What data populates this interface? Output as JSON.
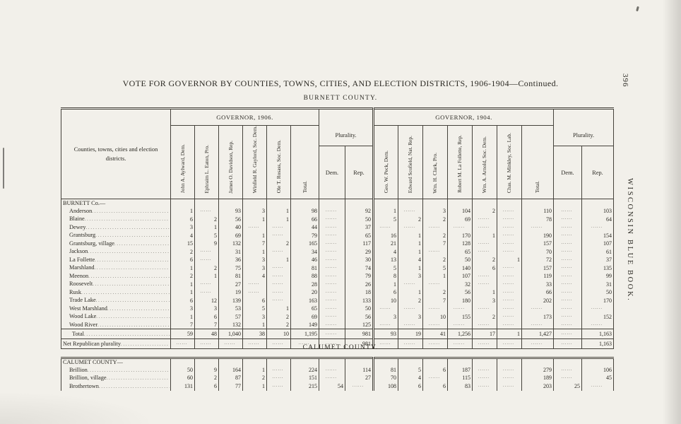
{
  "page": {
    "title": "VOTE FOR GOVERNOR BY COUNTIES, TOWNS, CITIES, AND ELECTION DISTRICTS, 1906-1904—Continued.",
    "page_number": "396",
    "side_text": "WISCONSIN BLUE BOOK.",
    "burnett_heading": "BURNETT COUNTY.",
    "calumet_heading": "CALUMET COUNTY."
  },
  "table": {
    "stub_header": "Counties, towns, cities and election districts.",
    "gov_1906": "GOVERNOR, 1906.",
    "gov_1904": "GOVERNOR, 1904.",
    "plurality": "Plurality.",
    "dem": "Dem.",
    "rep": "Rep.",
    "total_label": "Total.",
    "candidates_1906": [
      "John A. Aylward, Dem.",
      "Ephraim L. Eaton, Pro.",
      "James O. Davidson, Rep.",
      "Winfield R. Gaylord, Soc. Dem.",
      "Ole T. Rosass, Soc. Dem."
    ],
    "candidates_1904": [
      "Geo. W. Peck, Dem.",
      "Edward Scofield, Nat. Rep.",
      "Wm. H. Clark, Pro.",
      "Robert M. La Follette, Rep.",
      "Wm. A. Arnold, Soc. Dem.",
      "Chas. M. Minkley, Soc. Lab."
    ],
    "burnett_rows": [
      {
        "label": "BURNETT Co.—",
        "type": "group",
        "cells": [
          "",
          "",
          "",
          "",
          "",
          "",
          "",
          "",
          "",
          "",
          "",
          "",
          "",
          "",
          "",
          "",
          ""
        ]
      },
      {
        "label": "Anderson",
        "type": "data",
        "cells": [
          "1",
          "",
          "93",
          "3",
          "1",
          "98",
          "",
          "92",
          "1",
          "",
          "3",
          "104",
          "2",
          "",
          "110",
          "",
          "103"
        ]
      },
      {
        "label": "Blaine",
        "type": "data",
        "cells": [
          "6",
          "2",
          "56",
          "1",
          "1",
          "66",
          "",
          "50",
          "5",
          "2",
          "2",
          "69",
          "",
          "",
          "78",
          "",
          "64"
        ]
      },
      {
        "label": "Dewey",
        "type": "data",
        "cells": [
          "3",
          "1",
          "40",
          "",
          "",
          "44",
          "",
          "37",
          "",
          "",
          "",
          "",
          "",
          "",
          "",
          "",
          ""
        ]
      },
      {
        "label": "Grantsburg",
        "type": "data",
        "cells": [
          "4",
          "5",
          "69",
          "1",
          "",
          "79",
          "",
          "65",
          "16",
          "1",
          "2",
          "170",
          "1",
          "",
          "190",
          "",
          "154"
        ]
      },
      {
        "label": "Grantsburg, village",
        "type": "data",
        "cells": [
          "15",
          "9",
          "132",
          "7",
          "2",
          "165",
          "",
          "117",
          "21",
          "1",
          "7",
          "128",
          "",
          "",
          "157",
          "",
          "107"
        ]
      },
      {
        "label": "Jackson",
        "type": "data",
        "cells": [
          "2",
          "",
          "31",
          "1",
          "",
          "34",
          "",
          "29",
          "4",
          "1",
          "",
          "65",
          "",
          "",
          "70",
          "",
          "61"
        ]
      },
      {
        "label": "La Follette",
        "type": "data",
        "cells": [
          "6",
          "",
          "36",
          "3",
          "1",
          "46",
          "",
          "30",
          "13",
          "4",
          "2",
          "50",
          "2",
          "1",
          "72",
          "",
          "37"
        ]
      },
      {
        "label": "Marshland",
        "type": "data",
        "cells": [
          "1",
          "2",
          "75",
          "3",
          "",
          "81",
          "",
          "74",
          "5",
          "1",
          "5",
          "140",
          "6",
          "",
          "157",
          "",
          "135"
        ]
      },
      {
        "label": "Meenon",
        "type": "data",
        "cells": [
          "2",
          "1",
          "81",
          "4",
          "",
          "88",
          "",
          "79",
          "8",
          "3",
          "1",
          "107",
          "",
          "",
          "119",
          "",
          "99"
        ]
      },
      {
        "label": "Roosevelt",
        "type": "data",
        "cells": [
          "1",
          "",
          "27",
          "",
          "",
          "28",
          "",
          "26",
          "1",
          "",
          "",
          "32",
          "",
          "",
          "33",
          "",
          "31"
        ]
      },
      {
        "label": "Rusk",
        "type": "data",
        "cells": [
          "1",
          "",
          "19",
          "",
          "",
          "20",
          "",
          "18",
          "6",
          "1",
          "2",
          "56",
          "1",
          "",
          "66",
          "",
          "50"
        ]
      },
      {
        "label": "Trade Lake",
        "type": "data",
        "cells": [
          "6",
          "12",
          "139",
          "6",
          "",
          "163",
          "",
          "133",
          "10",
          "2",
          "7",
          "180",
          "3",
          "",
          "202",
          "",
          "170"
        ]
      },
      {
        "label": "West Marshland",
        "type": "data",
        "cells": [
          "3",
          "3",
          "53",
          "5",
          "1",
          "65",
          "",
          "50",
          "",
          "",
          "",
          "",
          "",
          "",
          "",
          "",
          ""
        ]
      },
      {
        "label": "Wood Lake",
        "type": "data",
        "cells": [
          "1",
          "6",
          "57",
          "3",
          "2",
          "69",
          "",
          "56",
          "3",
          "3",
          "10",
          "155",
          "2",
          "",
          "173",
          "",
          "152"
        ]
      },
      {
        "label": "Wood River",
        "type": "data",
        "cells": [
          "7",
          "7",
          "132",
          "1",
          "2",
          "149",
          "",
          "125",
          "",
          "",
          "",
          "",
          "",
          "",
          "",
          "",
          ""
        ]
      },
      {
        "label": "Total",
        "type": "total",
        "cells": [
          "59",
          "48",
          "1,040",
          "38",
          "10",
          "1,195",
          "",
          "981",
          "93",
          "19",
          "41",
          "1,256",
          "17",
          "1",
          "1,427",
          "",
          "1,163"
        ]
      },
      {
        "label": "Net Republican plurality",
        "type": "net",
        "cells": [
          "",
          "",
          "",
          "",
          "",
          "",
          "",
          "981",
          "",
          "",
          "",
          "",
          "",
          "",
          "",
          "",
          "1,163"
        ]
      }
    ],
    "calumet_rows": [
      {
        "label": "CALUMET COUNTY—",
        "type": "group",
        "cells": [
          "",
          "",
          "",
          "",
          "",
          "",
          "",
          "",
          "",
          "",
          "",
          "",
          "",
          "",
          "",
          "",
          ""
        ]
      },
      {
        "label": "Brillion",
        "type": "data",
        "cells": [
          "50",
          "9",
          "164",
          "1",
          "",
          "224",
          "",
          "114",
          "81",
          "5",
          "6",
          "187",
          "",
          "",
          "279",
          "",
          "106"
        ]
      },
      {
        "label": "Brillion, village",
        "type": "data",
        "cells": [
          "60",
          "2",
          "87",
          "2",
          "",
          "151",
          "",
          "27",
          "70",
          "4",
          "",
          "115",
          "",
          "",
          "189",
          "",
          "45"
        ]
      },
      {
        "label": "Brothertown",
        "type": "data",
        "cells": [
          "131",
          "6",
          "77",
          "1",
          "",
          "215",
          "54",
          "",
          "108",
          "6",
          "6",
          "83",
          "",
          "",
          "203",
          "25",
          ""
        ]
      }
    ]
  }
}
